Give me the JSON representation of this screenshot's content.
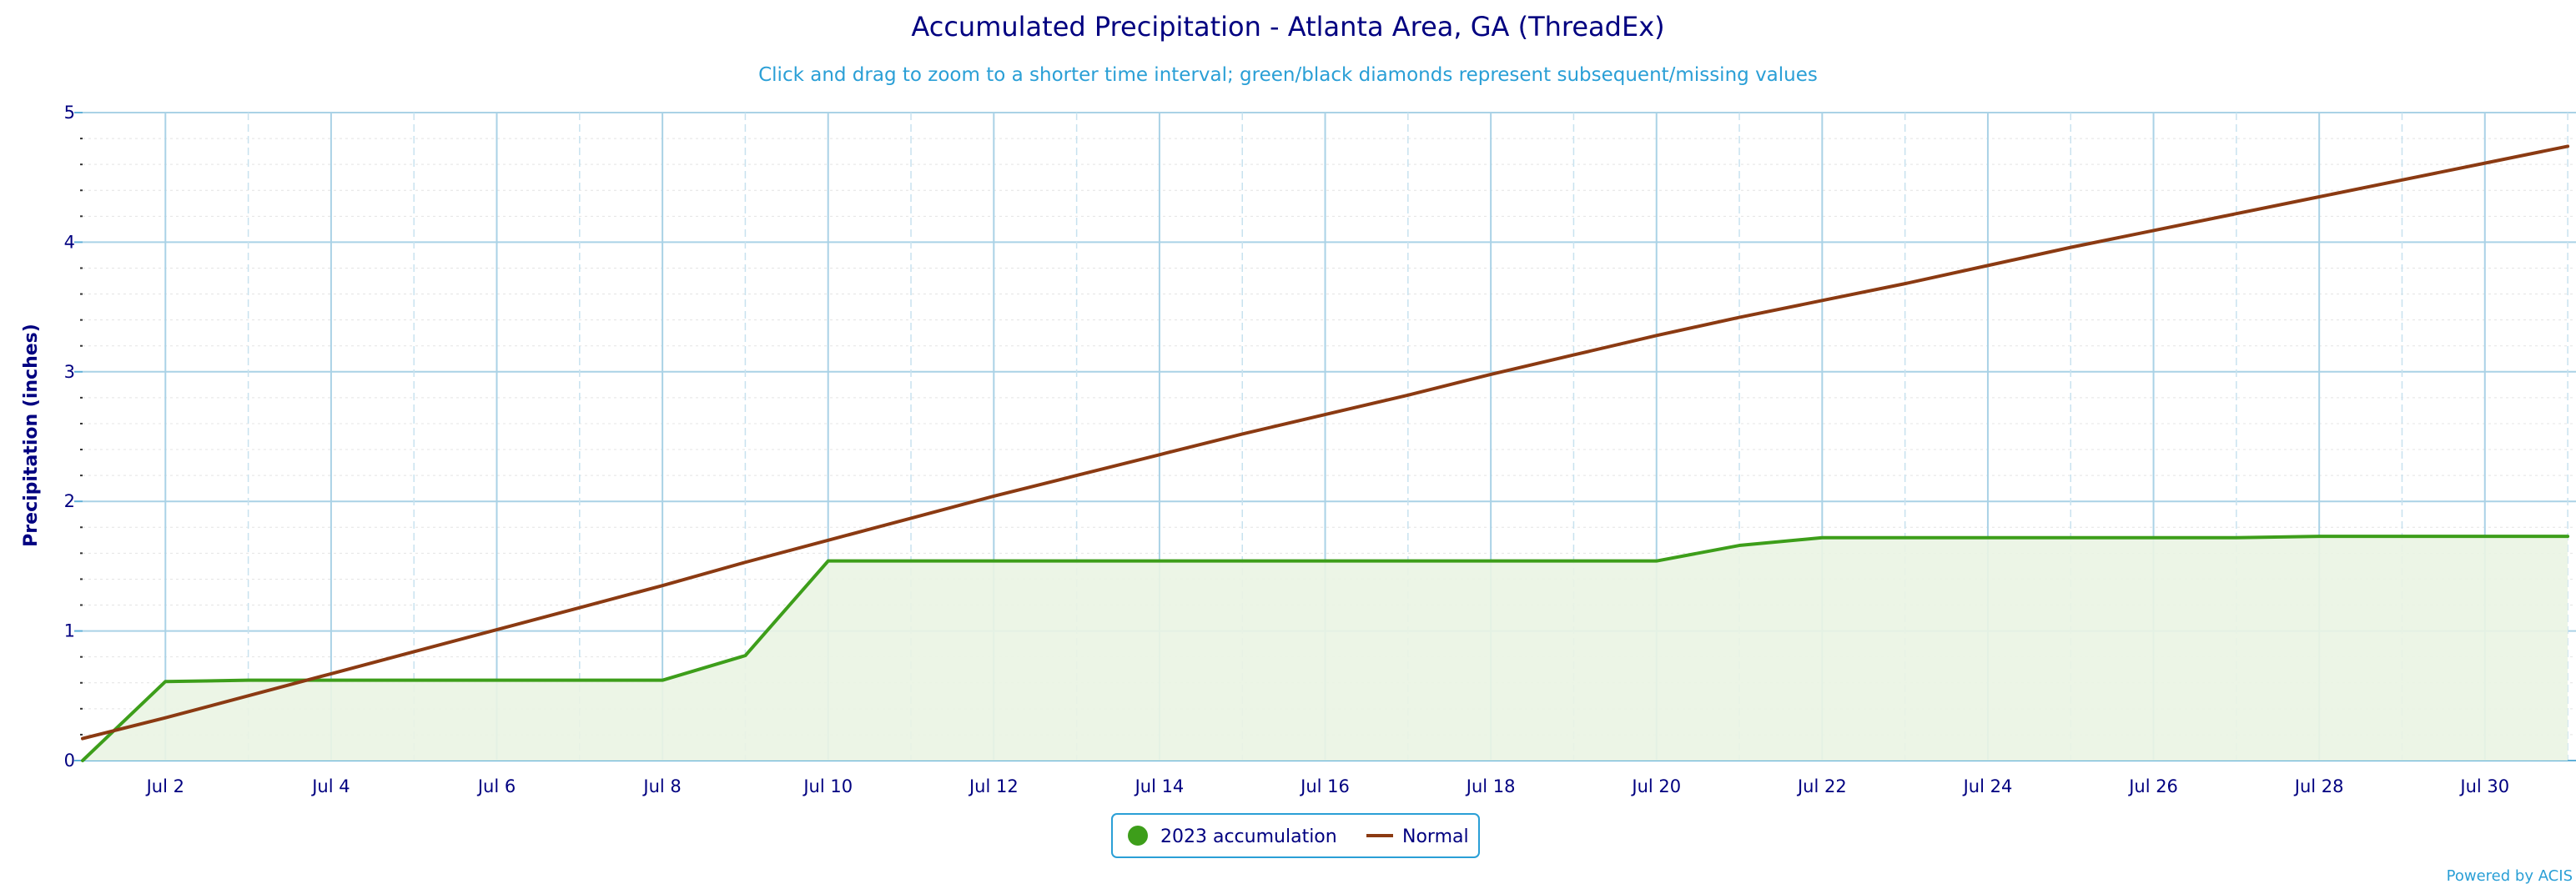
{
  "chart_data": {
    "type": "area",
    "title": "Accumulated Precipitation - Atlanta Area, GA (ThreadEx)",
    "subtitle": "Click and drag to zoom to a shorter time interval; green/black diamonds represent subsequent/missing values",
    "ylabel": "Precipitation (inches)",
    "xlabel": "",
    "ylim": [
      0,
      5
    ],
    "yticks": [
      "0",
      "1",
      "2",
      "3",
      "4",
      "5"
    ],
    "xlim": [
      1,
      31.1
    ],
    "xticks": [
      {
        "day": 2,
        "label": "Jul 2"
      },
      {
        "day": 4,
        "label": "Jul 4"
      },
      {
        "day": 6,
        "label": "Jul 6"
      },
      {
        "day": 8,
        "label": "Jul 8"
      },
      {
        "day": 10,
        "label": "Jul 10"
      },
      {
        "day": 12,
        "label": "Jul 12"
      },
      {
        "day": 14,
        "label": "Jul 14"
      },
      {
        "day": 16,
        "label": "Jul 16"
      },
      {
        "day": 18,
        "label": "Jul 18"
      },
      {
        "day": 20,
        "label": "Jul 20"
      },
      {
        "day": 22,
        "label": "Jul 22"
      },
      {
        "day": 24,
        "label": "Jul 24"
      },
      {
        "day": 26,
        "label": "Jul 26"
      },
      {
        "day": 28,
        "label": "Jul 28"
      },
      {
        "day": 30,
        "label": "Jul 30"
      }
    ],
    "grid": true,
    "legend_position": "bottom-center",
    "series": [
      {
        "name": "2023 accumulation",
        "color": "#3d9e1a",
        "fill": "#eaf4e3",
        "style": "area",
        "x": [
          1,
          2,
          3,
          4,
          5,
          6,
          7,
          8,
          9,
          10,
          11,
          12,
          13,
          14,
          15,
          16,
          17,
          18,
          19,
          20,
          21,
          22,
          23,
          24,
          25,
          26,
          27,
          28,
          29,
          30,
          31
        ],
        "values": [
          0,
          0.61,
          0.62,
          0.62,
          0.62,
          0.62,
          0.62,
          0.62,
          0.81,
          1.54,
          1.54,
          1.54,
          1.54,
          1.54,
          1.54,
          1.54,
          1.54,
          1.54,
          1.54,
          1.54,
          1.66,
          1.72,
          1.72,
          1.72,
          1.72,
          1.72,
          1.72,
          1.73,
          1.73,
          1.73,
          1.73
        ]
      },
      {
        "name": "Normal",
        "color": "#8b3a12",
        "style": "line",
        "x": [
          1,
          2,
          3,
          4,
          5,
          6,
          7,
          8,
          9,
          10,
          11,
          12,
          13,
          14,
          15,
          16,
          17,
          18,
          19,
          20,
          21,
          22,
          23,
          24,
          25,
          26,
          27,
          28,
          29,
          30,
          31
        ],
        "values": [
          0.17,
          0.33,
          0.5,
          0.67,
          0.84,
          1.01,
          1.18,
          1.35,
          1.53,
          1.7,
          1.87,
          2.04,
          2.2,
          2.36,
          2.52,
          2.67,
          2.82,
          2.98,
          3.13,
          3.28,
          3.42,
          3.55,
          3.68,
          3.82,
          3.96,
          4.09,
          4.22,
          4.35,
          4.48,
          4.61,
          4.74
        ]
      }
    ]
  },
  "legend": {
    "items": [
      {
        "label": "2023 accumulation",
        "color": "#3d9e1a",
        "symbol": "circle"
      },
      {
        "label": "Normal",
        "color": "#8b3a12",
        "symbol": "line"
      }
    ]
  },
  "credit": "Powered by ACIS"
}
